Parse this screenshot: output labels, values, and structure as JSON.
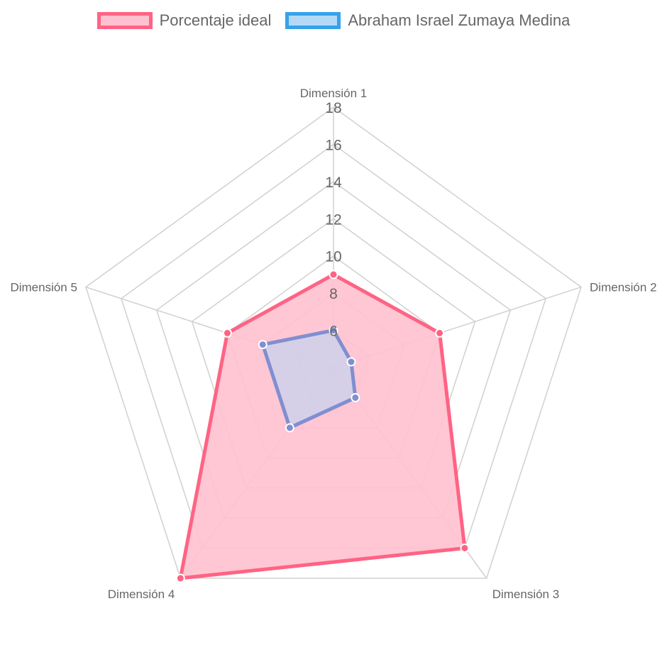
{
  "chart_data": {
    "type": "radar",
    "categories": [
      "Dimensión 1",
      "Dimensión 2",
      "Dimensión 3",
      "Dimensión 4",
      "Dimensión 5"
    ],
    "r_range": [
      4,
      18
    ],
    "tick_values": [
      6,
      8,
      10,
      12,
      14,
      16,
      18
    ],
    "tick_labels": [
      "6",
      "8",
      "10",
      "12",
      "14",
      "16",
      "18"
    ],
    "grid": true,
    "legend_position": "top",
    "series": [
      {
        "name": "Porcentaje ideal",
        "values": [
          9,
          10,
          16,
          18,
          10
        ],
        "color": "#ff6384",
        "fill": "#ffc0cf"
      },
      {
        "name": "Abraham Israel Zumaya Medina",
        "values": [
          6,
          5,
          6,
          8,
          8
        ],
        "color": "#36a2eb",
        "fill": "#b3d9f7"
      }
    ]
  }
}
